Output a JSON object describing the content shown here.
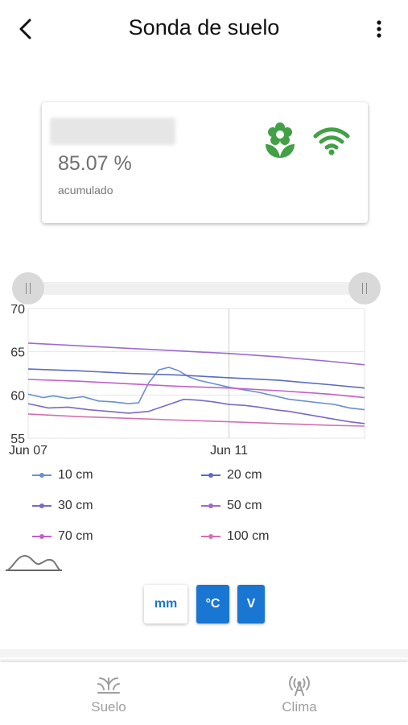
{
  "header": {
    "title": "Sonda de suelo",
    "back_icon": "arrow-back-icon",
    "menu_icon": "more-vertical-icon"
  },
  "card": {
    "value": "85.07 %",
    "subtitle": "acumulado",
    "status_icons": [
      "plant-icon",
      "wifi-icon"
    ],
    "accent": "#43a047"
  },
  "slider": {
    "start": 0,
    "end": 1
  },
  "chart_data": {
    "type": "line",
    "ylim": [
      55,
      70
    ],
    "yticks": [
      "70",
      "65",
      "60",
      "55"
    ],
    "xticks": [
      {
        "label": "Jun 07",
        "pos": 0
      },
      {
        "label": "Jun 11",
        "pos": 4
      }
    ],
    "xrange": [
      0,
      6.7
    ],
    "series": [
      {
        "name": "10 cm",
        "color": "#6a8fd0",
        "x": [
          0,
          0.3,
          0.5,
          0.8,
          1.1,
          1.4,
          1.7,
          2.0,
          2.2,
          2.4,
          2.6,
          2.8,
          3.0,
          3.2,
          3.4,
          3.7,
          4.0,
          4.3,
          4.6,
          4.9,
          5.2,
          5.5,
          5.8,
          6.1,
          6.4,
          6.7
        ],
        "y": [
          60.1,
          59.7,
          59.9,
          59.6,
          59.8,
          59.3,
          59.2,
          59.0,
          59.1,
          61.4,
          62.9,
          63.2,
          62.8,
          62.1,
          61.7,
          61.3,
          60.9,
          60.6,
          60.3,
          59.9,
          59.5,
          59.3,
          59.1,
          58.9,
          58.5,
          58.3
        ]
      },
      {
        "name": "20 cm",
        "color": "#5c6bc0",
        "x": [
          0,
          1,
          2,
          3,
          4,
          5,
          6,
          6.7
        ],
        "y": [
          63.0,
          62.8,
          62.5,
          62.3,
          62.0,
          61.7,
          61.2,
          60.8
        ]
      },
      {
        "name": "30 cm",
        "color": "#7b68c8",
        "x": [
          0,
          0.4,
          0.8,
          1.2,
          1.6,
          2.0,
          2.4,
          2.8,
          3.1,
          3.4,
          3.7,
          4.0,
          4.3,
          4.6,
          4.9,
          5.2,
          5.5,
          5.8,
          6.1,
          6.4,
          6.7
        ],
        "y": [
          59.0,
          58.5,
          58.6,
          58.3,
          58.1,
          57.9,
          58.1,
          58.9,
          59.5,
          59.4,
          59.2,
          58.9,
          58.8,
          58.6,
          58.3,
          58.1,
          57.8,
          57.5,
          57.2,
          56.9,
          56.7
        ]
      },
      {
        "name": "50 cm",
        "color": "#9c6bd0",
        "x": [
          0,
          1,
          2,
          3,
          4,
          5,
          6,
          6.7
        ],
        "y": [
          66.0,
          65.7,
          65.4,
          65.1,
          64.8,
          64.4,
          63.9,
          63.5
        ]
      },
      {
        "name": "70 cm",
        "color": "#c161c8",
        "x": [
          0,
          1,
          2,
          3,
          4,
          5,
          6,
          6.7
        ],
        "y": [
          61.8,
          61.6,
          61.3,
          61.0,
          60.8,
          60.5,
          60.1,
          59.7
        ]
      },
      {
        "name": "100 cm",
        "color": "#d46fb0",
        "x": [
          0,
          1,
          2,
          3,
          4,
          5,
          6,
          6.7
        ],
        "y": [
          57.8,
          57.5,
          57.3,
          57.1,
          56.9,
          56.7,
          56.5,
          56.4
        ]
      }
    ],
    "grid": true
  },
  "units": {
    "mm": "mm",
    "c": "°C",
    "v": "V",
    "accent": "#1976d2"
  },
  "nav": {
    "suelo": "Suelo",
    "clima": "Clima",
    "suelo_icon": "sprout-icon",
    "clima_icon": "antenna-icon"
  }
}
